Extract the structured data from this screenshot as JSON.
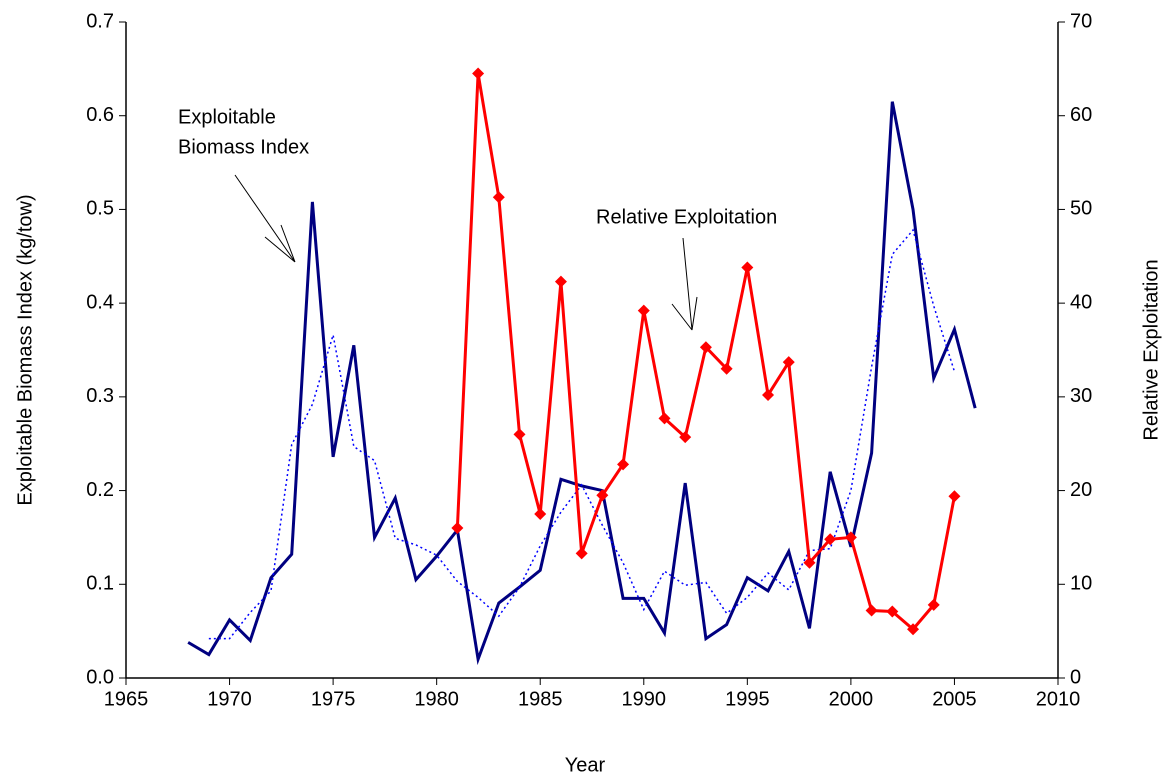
{
  "chart_data": {
    "type": "line",
    "xlabel": "Year",
    "ylabel": "Exploitable Biomass Index (kg/tow)",
    "y2label": "Relative Exploitation",
    "annotations": [
      {
        "lines": [
          "Exploitable",
          "Biomass Index"
        ]
      },
      {
        "lines": [
          "Relative Exploitation"
        ]
      }
    ],
    "xlim": [
      1965,
      2010
    ],
    "xticks": [
      1965,
      1970,
      1975,
      1980,
      1985,
      1990,
      1995,
      2000,
      2005,
      2010
    ],
    "ylim": [
      0,
      0.7
    ],
    "yticks": [
      {
        "value": 0,
        "label": "0.0"
      },
      0.1,
      0.2,
      0.3,
      0.4,
      0.5,
      0.6,
      0.7
    ],
    "y2lim": [
      0,
      70
    ],
    "y2ticks": [
      0,
      10,
      20,
      30,
      40,
      50,
      60,
      70
    ],
    "series": [
      {
        "color": "#000080",
        "style": "solid",
        "marker": "none",
        "x": [
          1968,
          1969,
          1970,
          1971,
          1972,
          1973,
          1974,
          1975,
          1976,
          1977,
          1978,
          1979,
          1980,
          1981,
          1982,
          1983,
          1984,
          1985,
          1986,
          1987,
          1988,
          1989,
          1990,
          1991,
          1992,
          1993,
          1994,
          1995,
          1996,
          1997,
          1998,
          1999,
          2000,
          2001,
          2002,
          2003,
          2004,
          2005,
          2006
        ],
        "values": [
          0.038,
          0.025,
          0.062,
          0.04,
          0.107,
          0.132,
          0.508,
          0.236,
          0.355,
          0.15,
          0.192,
          0.105,
          0.13,
          0.158,
          0.02,
          0.08,
          0.097,
          0.115,
          0.212,
          0.205,
          0.2,
          0.085,
          0.085,
          0.048,
          0.208,
          0.042,
          0.057,
          0.107,
          0.093,
          0.135,
          0.053,
          0.22,
          0.14,
          0.24,
          0.615,
          0.5,
          0.32,
          0.372,
          0.288
        ]
      },
      {
        "color": "#0000ff",
        "style": "dotted",
        "marker": "none",
        "x": [
          1969,
          1970,
          1971,
          1972,
          1973,
          1974,
          1975,
          1976,
          1977,
          1978,
          1979,
          1980,
          1981,
          1982,
          1983,
          1984,
          1985,
          1986,
          1987,
          1988,
          1989,
          1990,
          1991,
          1992,
          1993,
          1994,
          1995,
          1996,
          1997,
          1998,
          1999,
          2000,
          2001,
          2002,
          2003,
          2004,
          2005
        ],
        "values": [
          0.042,
          0.042,
          0.07,
          0.093,
          0.249,
          0.292,
          0.366,
          0.247,
          0.232,
          0.149,
          0.142,
          0.131,
          0.103,
          0.086,
          0.066,
          0.097,
          0.141,
          0.177,
          0.206,
          0.163,
          0.123,
          0.073,
          0.114,
          0.099,
          0.102,
          0.069,
          0.086,
          0.112,
          0.094,
          0.136,
          0.138,
          0.2,
          0.332,
          0.452,
          0.478,
          0.397,
          0.327
        ]
      },
      {
        "color": "#ff0000",
        "style": "solid",
        "marker": "diamond",
        "axis": "y2",
        "x": [
          1981,
          1982,
          1983,
          1984,
          1985,
          1986,
          1987,
          1988,
          1989,
          1990,
          1991,
          1992,
          1993,
          1994,
          1995,
          1996,
          1997,
          1998,
          1999,
          2000,
          2001,
          2002,
          2003,
          2004,
          2005
        ],
        "values": [
          16,
          64.5,
          51.3,
          26,
          17.5,
          42.3,
          13.3,
          19.5,
          22.8,
          39.2,
          27.7,
          25.7,
          35.3,
          33,
          43.8,
          30.2,
          33.7,
          12.3,
          14.8,
          15,
          7.2,
          7.1,
          5.2,
          7.8,
          19.4
        ]
      }
    ]
  }
}
